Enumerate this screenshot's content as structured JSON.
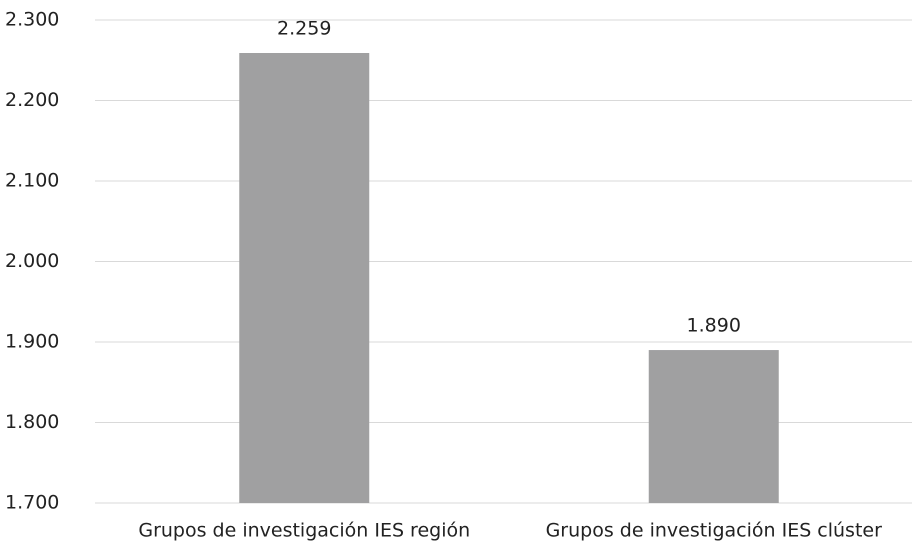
{
  "chart_data": {
    "type": "bar",
    "categories": [
      "Grupos de investigación IES región",
      "Grupos de investigación IES clúster"
    ],
    "values": [
      2259,
      1890
    ],
    "value_labels": [
      "2.259",
      "1.890"
    ],
    "color": "#a0a0a1",
    "ylim": [
      1700,
      2300
    ],
    "yticks": [
      {
        "value": 1700,
        "label": "1.700"
      },
      {
        "value": 1800,
        "label": "1.800"
      },
      {
        "value": 1900,
        "label": "1.900"
      },
      {
        "value": 2000,
        "label": "2.000"
      },
      {
        "value": 2100,
        "label": "2.100"
      },
      {
        "value": 2200,
        "label": "2.200"
      },
      {
        "value": 2300,
        "label": "2.300"
      }
    ],
    "grid": true
  }
}
